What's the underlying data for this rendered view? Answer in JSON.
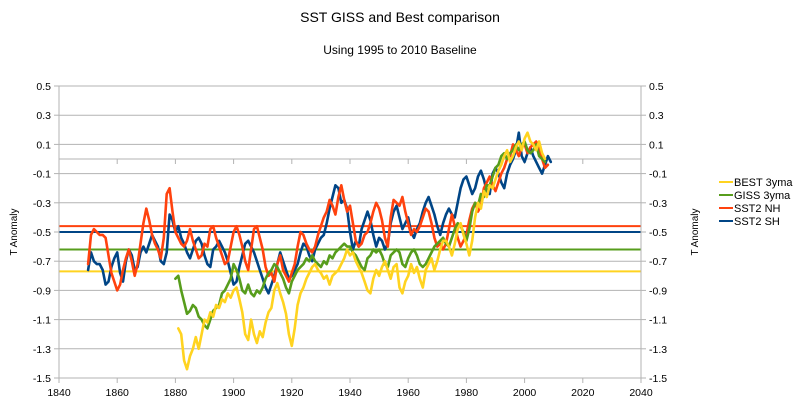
{
  "chart_data": {
    "type": "line",
    "title": "SST GISS and Best comparison",
    "subtitle": "Using 1995 to 2010 Baseline",
    "xlabel": "",
    "ylabel": "T Anomaly",
    "ylabel_right": "T Anomaly",
    "xlim": [
      1840,
      2040
    ],
    "ylim": [
      -1.5,
      0.5
    ],
    "x_ticks": [
      1840,
      1860,
      1880,
      1900,
      1920,
      1940,
      1960,
      1980,
      2000,
      2020,
      2040
    ],
    "y_ticks": [
      0.5,
      0.3,
      0.1,
      -0.1,
      -0.3,
      -0.5,
      -0.7,
      -0.9,
      -1.1,
      -1.3,
      -1.5
    ],
    "y_tick_labels": [
      "0.5",
      "0.3",
      "0.1",
      "-0.1",
      "-0.3",
      "-0.5",
      "-0.7",
      "-0.9",
      "-1.1",
      "-1.3",
      "-1.5"
    ],
    "grid": true,
    "legend_position": "right",
    "series": [
      {
        "name": "BEST 3yma",
        "color": "#FFD320",
        "x_start": 1881,
        "values": [
          -1.16,
          -1.2,
          -1.38,
          -1.44,
          -1.35,
          -1.3,
          -1.22,
          -1.3,
          -1.2,
          -1.1,
          -1.12,
          -1.05,
          -1.08,
          -1.0,
          -1.02,
          -0.96,
          -0.98,
          -0.92,
          -0.95,
          -0.9,
          -0.88,
          -0.96,
          -1.05,
          -1.2,
          -1.24,
          -1.1,
          -1.2,
          -1.26,
          -1.18,
          -1.22,
          -1.12,
          -1.05,
          -1.02,
          -0.9,
          -0.85,
          -0.92,
          -0.98,
          -1.06,
          -1.2,
          -1.28,
          -1.16,
          -1.0,
          -0.92,
          -0.88,
          -0.82,
          -0.78,
          -0.74,
          -0.72,
          -0.76,
          -0.78,
          -0.82,
          -0.8,
          -0.86,
          -0.8,
          -0.78,
          -0.76,
          -0.72,
          -0.68,
          -0.62,
          -0.66,
          -0.64,
          -0.7,
          -0.74,
          -0.78,
          -0.84,
          -0.9,
          -0.92,
          -0.82,
          -0.76,
          -0.8,
          -0.74,
          -0.7,
          -0.76,
          -0.82,
          -0.74,
          -0.72,
          -0.88,
          -0.92,
          -0.84,
          -0.8,
          -0.72,
          -0.78,
          -0.74,
          -0.82,
          -0.88,
          -0.76,
          -0.72,
          -0.68,
          -0.76,
          -0.7,
          -0.62,
          -0.56,
          -0.56,
          -0.6,
          -0.66,
          -0.58,
          -0.48,
          -0.44,
          -0.52,
          -0.58,
          -0.66,
          -0.56,
          -0.4,
          -0.3,
          -0.34,
          -0.22,
          -0.26,
          -0.18,
          -0.2,
          -0.14,
          -0.08,
          -0.04,
          0.02,
          0.06,
          -0.02,
          0.02,
          0.08,
          0.12,
          0.06,
          0.14,
          0.18,
          0.12,
          0.1,
          0.06,
          0.12,
          0.04,
          0.0
        ]
      },
      {
        "name": "GISS 3yma",
        "color": "#579D1C",
        "x_start": 1880,
        "values": [
          -0.82,
          -0.8,
          -0.9,
          -0.98,
          -1.06,
          -1.04,
          -1.0,
          -1.02,
          -1.08,
          -1.1,
          -1.14,
          -1.16,
          -1.1,
          -1.04,
          -1.02,
          -1.0,
          -0.92,
          -0.9,
          -0.86,
          -0.82,
          -0.72,
          -0.76,
          -0.82,
          -0.9,
          -0.92,
          -0.86,
          -0.92,
          -0.94,
          -0.9,
          -0.92,
          -0.88,
          -0.82,
          -0.78,
          -0.76,
          -0.72,
          -0.74,
          -0.78,
          -0.82,
          -0.88,
          -0.92,
          -0.84,
          -0.8,
          -0.76,
          -0.74,
          -0.72,
          -0.68,
          -0.7,
          -0.66,
          -0.7,
          -0.72,
          -0.74,
          -0.7,
          -0.72,
          -0.66,
          -0.68,
          -0.64,
          -0.62,
          -0.6,
          -0.58,
          -0.6,
          -0.6,
          -0.64,
          -0.66,
          -0.7,
          -0.74,
          -0.76,
          -0.68,
          -0.66,
          -0.62,
          -0.64,
          -0.62,
          -0.66,
          -0.72,
          -0.74,
          -0.66,
          -0.64,
          -0.62,
          -0.64,
          -0.72,
          -0.74,
          -0.68,
          -0.64,
          -0.62,
          -0.66,
          -0.72,
          -0.74,
          -0.72,
          -0.68,
          -0.64,
          -0.6,
          -0.58,
          -0.56,
          -0.54,
          -0.58,
          -0.6,
          -0.54,
          -0.48,
          -0.44,
          -0.46,
          -0.5,
          -0.56,
          -0.48,
          -0.36,
          -0.3,
          -0.32,
          -0.24,
          -0.26,
          -0.18,
          -0.18,
          -0.12,
          -0.06,
          -0.04,
          0.02,
          0.04,
          0.0,
          0.04,
          0.06,
          0.1,
          0.06,
          0.1,
          0.12,
          0.06,
          0.04,
          0.06,
          0.1,
          0.02,
          0.0,
          -0.02
        ]
      },
      {
        "name": "SST2 NH",
        "color": "#FF420E",
        "x_start": 1850,
        "values": [
          -0.72,
          -0.52,
          -0.48,
          -0.5,
          -0.52,
          -0.52,
          -0.54,
          -0.66,
          -0.78,
          -0.84,
          -0.9,
          -0.86,
          -0.76,
          -0.68,
          -0.62,
          -0.7,
          -0.8,
          -0.72,
          -0.58,
          -0.44,
          -0.34,
          -0.42,
          -0.52,
          -0.58,
          -0.62,
          -0.68,
          -0.54,
          -0.24,
          -0.2,
          -0.36,
          -0.5,
          -0.54,
          -0.58,
          -0.6,
          -0.56,
          -0.48,
          -0.56,
          -0.62,
          -0.68,
          -0.66,
          -0.58,
          -0.6,
          -0.48,
          -0.46,
          -0.54,
          -0.6,
          -0.66,
          -0.72,
          -0.7,
          -0.6,
          -0.5,
          -0.46,
          -0.52,
          -0.6,
          -0.7,
          -0.76,
          -0.62,
          -0.48,
          -0.46,
          -0.54,
          -0.62,
          -0.74,
          -0.8,
          -0.78,
          -0.84,
          -0.72,
          -0.66,
          -0.76,
          -0.8,
          -0.84,
          -0.78,
          -0.72,
          -0.6,
          -0.5,
          -0.52,
          -0.58,
          -0.62,
          -0.64,
          -0.6,
          -0.52,
          -0.46,
          -0.4,
          -0.36,
          -0.28,
          -0.32,
          -0.38,
          -0.26,
          -0.18,
          -0.28,
          -0.36,
          -0.32,
          -0.44,
          -0.56,
          -0.6,
          -0.58,
          -0.52,
          -0.5,
          -0.44,
          -0.36,
          -0.3,
          -0.34,
          -0.42,
          -0.54,
          -0.6,
          -0.4,
          -0.28,
          -0.3,
          -0.32,
          -0.26,
          -0.36,
          -0.44,
          -0.52,
          -0.48,
          -0.5,
          -0.46,
          -0.4,
          -0.34,
          -0.36,
          -0.44,
          -0.54,
          -0.6,
          -0.58,
          -0.62,
          -0.58,
          -0.48,
          -0.38,
          -0.46,
          -0.54,
          -0.6,
          -0.56,
          -0.52,
          -0.42,
          -0.34,
          -0.3,
          -0.36,
          -0.32,
          -0.2,
          -0.16,
          -0.12,
          -0.18,
          -0.22,
          -0.16,
          -0.1,
          -0.06,
          0.0,
          0.02,
          0.1,
          0.06,
          0.02,
          0.08,
          0.1,
          0.04,
          0.08,
          0.1,
          0.12,
          0.06,
          0.0,
          -0.06,
          -0.04
        ]
      },
      {
        "name": "SST2 SH",
        "color": "#004586",
        "x_start": 1850,
        "values": [
          -0.76,
          -0.64,
          -0.7,
          -0.72,
          -0.72,
          -0.76,
          -0.86,
          -0.84,
          -0.74,
          -0.68,
          -0.64,
          -0.78,
          -0.84,
          -0.7,
          -0.62,
          -0.66,
          -0.76,
          -0.74,
          -0.64,
          -0.6,
          -0.64,
          -0.58,
          -0.52,
          -0.56,
          -0.6,
          -0.7,
          -0.72,
          -0.64,
          -0.38,
          -0.42,
          -0.5,
          -0.46,
          -0.54,
          -0.58,
          -0.64,
          -0.68,
          -0.62,
          -0.56,
          -0.54,
          -0.58,
          -0.66,
          -0.72,
          -0.74,
          -0.62,
          -0.6,
          -0.56,
          -0.6,
          -0.64,
          -0.7,
          -0.78,
          -0.86,
          -0.84,
          -0.74,
          -0.66,
          -0.58,
          -0.56,
          -0.6,
          -0.64,
          -0.7,
          -0.76,
          -0.82,
          -0.88,
          -0.92,
          -0.86,
          -0.8,
          -0.72,
          -0.64,
          -0.7,
          -0.76,
          -0.82,
          -0.8,
          -0.76,
          -0.72,
          -0.64,
          -0.58,
          -0.6,
          -0.66,
          -0.7,
          -0.62,
          -0.58,
          -0.54,
          -0.52,
          -0.44,
          -0.34,
          -0.26,
          -0.18,
          -0.2,
          -0.3,
          -0.28,
          -0.34,
          -0.5,
          -0.62,
          -0.56,
          -0.6,
          -0.48,
          -0.42,
          -0.36,
          -0.42,
          -0.52,
          -0.6,
          -0.54,
          -0.56,
          -0.62,
          -0.58,
          -0.44,
          -0.36,
          -0.32,
          -0.4,
          -0.48,
          -0.44,
          -0.4,
          -0.5,
          -0.54,
          -0.48,
          -0.44,
          -0.36,
          -0.3,
          -0.26,
          -0.32,
          -0.38,
          -0.46,
          -0.52,
          -0.44,
          -0.38,
          -0.34,
          -0.38,
          -0.4,
          -0.3,
          -0.2,
          -0.14,
          -0.12,
          -0.18,
          -0.24,
          -0.2,
          -0.12,
          -0.08,
          -0.14,
          -0.22,
          -0.24,
          -0.1,
          -0.06,
          -0.1,
          -0.16,
          -0.2,
          -0.1,
          -0.04,
          0.0,
          0.06,
          0.18,
          0.02,
          -0.02,
          0.04,
          0.08,
          0.02,
          -0.02,
          -0.06,
          -0.1,
          -0.04,
          0.02,
          -0.02
        ]
      }
    ],
    "reference_lines": [
      {
        "name": "SST2 NH baseline",
        "color": "#FF420E",
        "value": -0.46
      },
      {
        "name": "SST2 SH baseline",
        "color": "#004586",
        "value": -0.5
      },
      {
        "name": "GISS 3yma baseline",
        "color": "#579D1C",
        "value": -0.62
      },
      {
        "name": "BEST 3yma baseline",
        "color": "#FFD320",
        "value": -0.77
      }
    ]
  }
}
